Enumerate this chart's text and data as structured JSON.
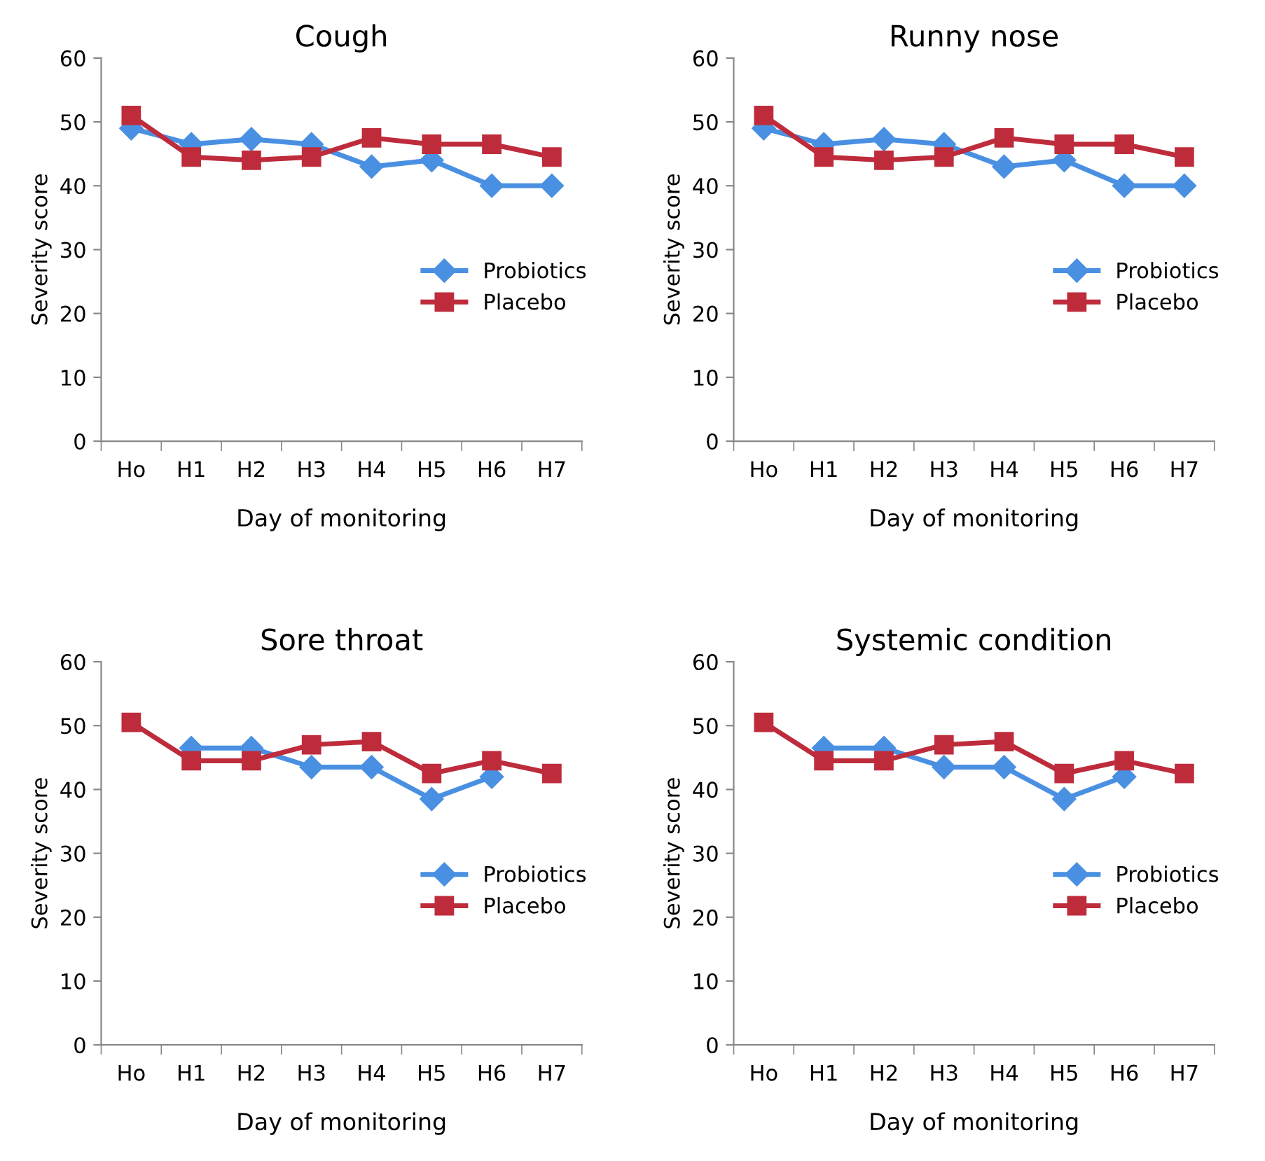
{
  "chart_data": [
    {
      "type": "line",
      "title": "Cough",
      "xlabel": "Day of monitoring",
      "ylabel": "Severity score",
      "categories": [
        "Ho",
        "H1",
        "H2",
        "H3",
        "H4",
        "H5",
        "H6",
        "H7"
      ],
      "ylim": [
        0,
        60
      ],
      "yticks": [
        0,
        10,
        20,
        30,
        40,
        50,
        60
      ],
      "grid": false,
      "legend": "right",
      "series": [
        {
          "name": "Probiotics",
          "color": "#4a90e2",
          "marker": "diamond",
          "values": [
            49,
            46.5,
            47.3,
            46.5,
            43,
            44,
            40,
            40
          ]
        },
        {
          "name": "Placebo",
          "color": "#be2c3c",
          "marker": "square",
          "values": [
            51,
            44.5,
            44,
            44.5,
            47.5,
            46.5,
            46.5,
            44.5
          ]
        }
      ]
    },
    {
      "type": "line",
      "title": "Runny nose",
      "xlabel": "Day of monitoring",
      "ylabel": "Severity score",
      "categories": [
        "Ho",
        "H1",
        "H2",
        "H3",
        "H4",
        "H5",
        "H6",
        "H7"
      ],
      "ylim": [
        0,
        60
      ],
      "yticks": [
        0,
        10,
        20,
        30,
        40,
        50,
        60
      ],
      "grid": false,
      "legend": "right",
      "series": [
        {
          "name": "Probiotics",
          "color": "#4a90e2",
          "marker": "diamond",
          "values": [
            49,
            46.5,
            47.3,
            46.5,
            43,
            44,
            40,
            40
          ]
        },
        {
          "name": "Placebo",
          "color": "#be2c3c",
          "marker": "square",
          "values": [
            51,
            44.5,
            44,
            44.5,
            47.5,
            46.5,
            46.5,
            44.5
          ]
        }
      ]
    },
    {
      "type": "line",
      "title": "Sore throat",
      "xlabel": "Day of monitoring",
      "ylabel": "Severity score",
      "categories": [
        "Ho",
        "H1",
        "H2",
        "H3",
        "H4",
        "H5",
        "H6",
        "H7"
      ],
      "ylim": [
        0,
        60
      ],
      "yticks": [
        0,
        10,
        20,
        30,
        40,
        50,
        60
      ],
      "grid": false,
      "legend": "right",
      "series": [
        {
          "name": "Probiotics",
          "color": "#4a90e2",
          "marker": "diamond",
          "values": [
            null,
            46.5,
            46.5,
            43.5,
            43.5,
            38.5,
            42,
            null
          ]
        },
        {
          "name": "Placebo",
          "color": "#be2c3c",
          "marker": "square",
          "values": [
            50.5,
            44.5,
            44.5,
            47,
            47.5,
            42.5,
            44.5,
            42.5
          ]
        }
      ]
    },
    {
      "type": "line",
      "title": "Systemic condition",
      "xlabel": "Day of monitoring",
      "ylabel": "Severity score",
      "categories": [
        "Ho",
        "H1",
        "H2",
        "H3",
        "H4",
        "H5",
        "H6",
        "H7"
      ],
      "ylim": [
        0,
        60
      ],
      "yticks": [
        0,
        10,
        20,
        30,
        40,
        50,
        60
      ],
      "grid": false,
      "legend": "right",
      "series": [
        {
          "name": "Probiotics",
          "color": "#4a90e2",
          "marker": "diamond",
          "values": [
            null,
            46.5,
            46.5,
            43.5,
            43.5,
            38.5,
            42,
            null
          ]
        },
        {
          "name": "Placebo",
          "color": "#be2c3c",
          "marker": "square",
          "values": [
            50.5,
            44.5,
            44.5,
            47,
            47.5,
            42.5,
            44.5,
            42.5
          ]
        }
      ]
    }
  ]
}
